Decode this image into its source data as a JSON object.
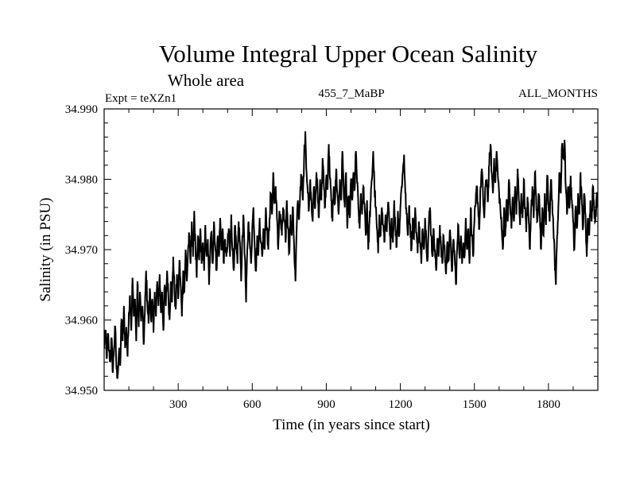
{
  "chart_data": {
    "type": "line",
    "title": "Volume Integral Upper Ocean Salinity",
    "subtitle": "Whole area",
    "header_left": "Expt = teXZn1",
    "header_center": "455_7_MaBP",
    "header_right": "ALL_MONTHS",
    "xlabel": "Time (in years since start)",
    "ylabel": "Salinity (in PSU)",
    "xlim": [
      0,
      2000
    ],
    "ylim": [
      34.95,
      34.99
    ],
    "x_ticks": [
      300,
      600,
      900,
      1200,
      1500,
      1800
    ],
    "x_tick_labels": [
      "300",
      "600",
      "900",
      "1200",
      "1500",
      "1800"
    ],
    "x_minor_step": 100,
    "y_ticks": [
      34.95,
      34.96,
      34.97,
      34.98,
      34.99
    ],
    "y_tick_labels": [
      "34.950",
      "34.960",
      "34.970",
      "34.980",
      "34.990"
    ],
    "y_minor_step": 0.002,
    "grid": false,
    "line_color": "#000000",
    "series": [
      {
        "name": "Salinity",
        "x_start": 0,
        "x_step": 5,
        "values": [
          34.956,
          34.9585,
          34.9545,
          34.958,
          34.9555,
          34.954,
          34.9575,
          34.9525,
          34.956,
          34.959,
          34.953,
          34.9522,
          34.9555,
          34.9535,
          34.96,
          34.957,
          34.962,
          34.956,
          34.959,
          34.9548,
          34.961,
          34.9635,
          34.9585,
          34.966,
          34.9605,
          34.963,
          34.957,
          34.9655,
          34.959,
          34.964,
          34.9598,
          34.962,
          34.9565,
          34.961,
          34.967,
          34.9625,
          34.9595,
          34.9645,
          34.96,
          34.963,
          34.9582,
          34.964,
          34.9605,
          34.9655,
          34.962,
          34.9665,
          34.961,
          34.964,
          34.9585,
          34.965,
          34.962,
          34.967,
          34.9635,
          34.96,
          34.9655,
          34.9625,
          34.969,
          34.964,
          34.9615,
          34.9665,
          34.963,
          34.9685,
          34.965,
          34.9605,
          34.967,
          34.964,
          34.97,
          34.9655,
          34.97,
          34.972,
          34.968,
          34.974,
          34.969,
          34.9755,
          34.97,
          34.966,
          34.972,
          34.9685,
          34.973,
          34.968,
          34.971,
          34.967,
          34.9735,
          34.969,
          34.9715,
          34.965,
          34.97,
          34.9725,
          34.968,
          34.974,
          34.9705,
          34.967,
          34.972,
          34.969,
          34.9745,
          34.97,
          34.973,
          34.968,
          34.9715,
          34.969,
          34.9705,
          34.973,
          34.969,
          34.975,
          34.97,
          34.967,
          34.9735,
          34.97,
          34.968,
          34.974,
          34.971,
          34.9655,
          34.972,
          34.9745,
          34.969,
          34.9625,
          34.97,
          34.974,
          34.971,
          34.968,
          34.973,
          34.976,
          34.9705,
          34.967,
          34.972,
          34.9695,
          34.9745,
          34.971,
          34.969,
          34.973,
          34.97,
          34.976,
          34.973,
          34.97,
          34.9745,
          34.978,
          34.975,
          34.981,
          34.9765,
          34.979,
          34.9745,
          34.97,
          34.9755,
          34.974,
          34.972,
          34.976,
          34.974,
          34.971,
          34.977,
          34.973,
          34.9695,
          34.975,
          34.972,
          34.976,
          34.97,
          34.9655,
          34.973,
          34.977,
          34.9745,
          34.979,
          34.9805,
          34.977,
          34.983,
          34.9868,
          34.981,
          34.978,
          34.976,
          34.98,
          34.977,
          34.974,
          34.979,
          34.976,
          34.981,
          34.978,
          34.9745,
          34.98,
          34.977,
          34.983,
          34.979,
          34.976,
          34.9805,
          34.9785,
          34.985,
          34.98,
          34.977,
          34.974,
          34.979,
          34.9765,
          34.9815,
          34.978,
          34.975,
          34.98,
          34.977,
          34.984,
          34.979,
          34.976,
          34.981,
          34.973,
          34.9775,
          34.9745,
          34.98,
          34.977,
          34.981,
          34.9785,
          34.984,
          34.9795,
          34.976,
          34.973,
          34.978,
          34.975,
          34.979,
          34.9765,
          34.972,
          34.977,
          34.97,
          34.974,
          34.977,
          34.98,
          34.984,
          34.979,
          34.976,
          34.973,
          34.9695,
          34.975,
          34.972,
          34.976,
          34.9735,
          34.971,
          34.975,
          34.9725,
          34.9765,
          34.974,
          34.97,
          34.9745,
          34.971,
          34.977,
          34.973,
          34.9705,
          34.9755,
          34.972,
          34.976,
          34.979,
          34.981,
          34.9835,
          34.978,
          34.975,
          34.972,
          34.976,
          34.9735,
          34.97,
          34.9745,
          34.9715,
          34.976,
          34.9725,
          34.9695,
          34.974,
          34.971,
          34.968,
          34.973,
          34.97,
          34.9745,
          34.9715,
          34.9685,
          34.9735,
          34.976,
          34.972,
          34.969,
          34.973,
          34.97,
          34.967,
          34.9715,
          34.969,
          34.9735,
          34.9705,
          34.968,
          34.972,
          34.9695,
          34.9665,
          34.971,
          34.9685,
          34.9725,
          34.97,
          34.967,
          34.9715,
          34.969,
          34.965,
          34.97,
          34.9735,
          34.969,
          34.972,
          34.968,
          34.971,
          34.969,
          34.9745,
          34.97,
          34.973,
          34.968,
          34.976,
          34.972,
          34.969,
          34.974,
          34.9765,
          34.979,
          34.976,
          34.973,
          34.979,
          34.9815,
          34.9775,
          34.9745,
          34.979,
          34.98,
          34.977,
          34.982,
          34.985,
          34.981,
          34.978,
          34.983,
          34.9795,
          34.984,
          34.9805,
          34.978,
          34.976,
          34.973,
          34.97,
          34.976,
          34.972,
          34.977,
          34.974,
          34.98,
          34.976,
          34.973,
          34.9775,
          34.974,
          34.979,
          34.975,
          34.9815,
          34.977,
          34.9735,
          34.978,
          34.9745,
          34.98,
          34.976,
          34.9725,
          34.9775,
          34.974,
          34.97,
          34.976,
          34.979,
          34.9745,
          34.981,
          34.9775,
          34.974,
          34.978,
          34.975,
          34.97,
          34.976,
          34.972,
          34.978,
          34.9735,
          34.9805,
          34.9765,
          34.974,
          34.98,
          34.977,
          34.973,
          34.969,
          34.965,
          34.972,
          34.976,
          34.981,
          34.978,
          34.985,
          34.983,
          34.9856,
          34.979,
          34.975,
          34.979,
          34.976,
          34.9805,
          34.977,
          34.974,
          34.97,
          34.976,
          34.973,
          34.978,
          34.975,
          34.981,
          34.9765,
          34.973,
          34.978,
          34.975,
          34.969,
          34.9745,
          34.972,
          34.977,
          34.974,
          34.979,
          34.976,
          34.974,
          34.9775,
          34.976
        ]
      }
    ]
  }
}
